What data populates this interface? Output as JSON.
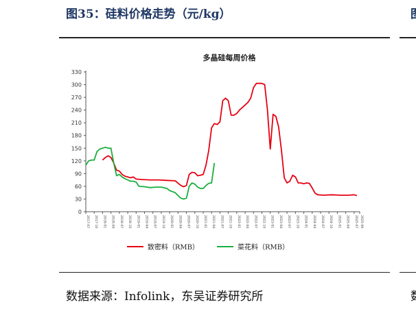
{
  "figure": {
    "title": "图35：硅料价格走势（元/kg）",
    "edge_title": "图",
    "source": "数据来源：Infolink，东吴证券研究所",
    "edge_source": "数"
  },
  "colors": {
    "dense": "#e60012",
    "cauliflower": "#1aae3c",
    "axis": "#555555",
    "text": "#222222"
  },
  "chart_data": {
    "type": "line",
    "title": "多晶硅每周价格",
    "xlabel": "",
    "ylabel": "",
    "ylim": [
      0,
      330
    ],
    "yticks": [
      0,
      30,
      60,
      90,
      120,
      150,
      180,
      210,
      240,
      270,
      300,
      330
    ],
    "xlim": [
      "2017-07",
      "2025-09"
    ],
    "xticks": [
      "2017-07",
      "2017-10",
      "2018-01",
      "2018-04",
      "2018-07",
      "2018-10",
      "2019-01",
      "2019-04",
      "2019-07",
      "2019-10",
      "2020-01",
      "2020-04",
      "2020-07",
      "2020-10",
      "2021-01",
      "2021-04",
      "2021-07",
      "2021-10",
      "2022-01",
      "2022-04",
      "2022-07",
      "2022-10",
      "2023-01",
      "2023-04",
      "2023-07",
      "2023-10",
      "2024-01",
      "2024-04",
      "2024-07",
      "2024-10",
      "2025-01",
      "2025-04",
      "2025-07",
      "2025-09"
    ],
    "grid": false,
    "legend": "bottom",
    "series": [
      {
        "name": "致密料（RMB）",
        "color": "#e60012",
        "points": [
          [
            "2018-01",
            122
          ],
          [
            "2018-02",
            128
          ],
          [
            "2018-03",
            132
          ],
          [
            "2018-04",
            128
          ],
          [
            "2018-05",
            115
          ],
          [
            "2018-06",
            98
          ],
          [
            "2018-07",
            96
          ],
          [
            "2018-08",
            88
          ],
          [
            "2018-09",
            84
          ],
          [
            "2018-10",
            82
          ],
          [
            "2018-11",
            80
          ],
          [
            "2018-12",
            82
          ],
          [
            "2019-01",
            77
          ],
          [
            "2019-03",
            76
          ],
          [
            "2019-06",
            75
          ],
          [
            "2019-09",
            75
          ],
          [
            "2019-12",
            74
          ],
          [
            "2020-03",
            73
          ],
          [
            "2020-05",
            62
          ],
          [
            "2020-06",
            59
          ],
          [
            "2020-07",
            62
          ],
          [
            "2020-08",
            88
          ],
          [
            "2020-09",
            93
          ],
          [
            "2020-10",
            92
          ],
          [
            "2020-11",
            85
          ],
          [
            "2020-12",
            86
          ],
          [
            "2021-01",
            88
          ],
          [
            "2021-02",
            110
          ],
          [
            "2021-03",
            145
          ],
          [
            "2021-04",
            198
          ],
          [
            "2021-05",
            208
          ],
          [
            "2021-06",
            206
          ],
          [
            "2021-07",
            212
          ],
          [
            "2021-08",
            262
          ],
          [
            "2021-09",
            268
          ],
          [
            "2021-10",
            262
          ],
          [
            "2021-11",
            228
          ],
          [
            "2021-12",
            228
          ],
          [
            "2022-01",
            232
          ],
          [
            "2022-02",
            240
          ],
          [
            "2022-03",
            246
          ],
          [
            "2022-04",
            252
          ],
          [
            "2022-05",
            258
          ],
          [
            "2022-06",
            268
          ],
          [
            "2022-07",
            293
          ],
          [
            "2022-08",
            303
          ],
          [
            "2022-09",
            303
          ],
          [
            "2022-10",
            303
          ],
          [
            "2022-11",
            300
          ],
          [
            "2022-12",
            240
          ],
          [
            "2023-01",
            148
          ],
          [
            "2023-02",
            230
          ],
          [
            "2023-03",
            225
          ],
          [
            "2023-04",
            200
          ],
          [
            "2023-05",
            145
          ],
          [
            "2023-06",
            80
          ],
          [
            "2023-07",
            68
          ],
          [
            "2023-08",
            72
          ],
          [
            "2023-09",
            86
          ],
          [
            "2023-10",
            82
          ],
          [
            "2023-11",
            68
          ],
          [
            "2023-12",
            68
          ],
          [
            "2024-01",
            66
          ],
          [
            "2024-02",
            68
          ],
          [
            "2024-03",
            67
          ],
          [
            "2024-04",
            56
          ],
          [
            "2024-05",
            44
          ],
          [
            "2024-06",
            40
          ],
          [
            "2024-08",
            39
          ],
          [
            "2024-11",
            40
          ],
          [
            "2025-02",
            39
          ],
          [
            "2025-05",
            39
          ],
          [
            "2025-07",
            40
          ],
          [
            "2025-08",
            38
          ]
        ]
      },
      {
        "name": "菜花料（RMB）",
        "color": "#1aae3c",
        "points": [
          [
            "2017-07",
            110
          ],
          [
            "2017-08",
            120
          ],
          [
            "2017-09",
            122
          ],
          [
            "2017-10",
            122
          ],
          [
            "2017-11",
            142
          ],
          [
            "2017-12",
            148
          ],
          [
            "2018-01",
            150
          ],
          [
            "2018-02",
            152
          ],
          [
            "2018-03",
            150
          ],
          [
            "2018-04",
            150
          ],
          [
            "2018-05",
            115
          ],
          [
            "2018-06",
            85
          ],
          [
            "2018-07",
            88
          ],
          [
            "2018-08",
            82
          ],
          [
            "2018-09",
            78
          ],
          [
            "2018-10",
            75
          ],
          [
            "2018-11",
            72
          ],
          [
            "2018-12",
            72
          ],
          [
            "2019-01",
            70
          ],
          [
            "2019-02",
            60
          ],
          [
            "2019-04",
            59
          ],
          [
            "2019-06",
            57
          ],
          [
            "2019-08",
            58
          ],
          [
            "2019-10",
            58
          ],
          [
            "2019-12",
            55
          ],
          [
            "2020-01",
            50
          ],
          [
            "2020-03",
            45
          ],
          [
            "2020-04",
            38
          ],
          [
            "2020-05",
            32
          ],
          [
            "2020-06",
            30
          ],
          [
            "2020-07",
            32
          ],
          [
            "2020-08",
            60
          ],
          [
            "2020-09",
            68
          ],
          [
            "2020-10",
            65
          ],
          [
            "2020-11",
            58
          ],
          [
            "2020-12",
            55
          ],
          [
            "2021-01",
            55
          ],
          [
            "2021-02",
            62
          ],
          [
            "2021-03",
            67
          ],
          [
            "2021-04",
            68
          ],
          [
            "2021-05",
            115
          ]
        ]
      }
    ]
  }
}
